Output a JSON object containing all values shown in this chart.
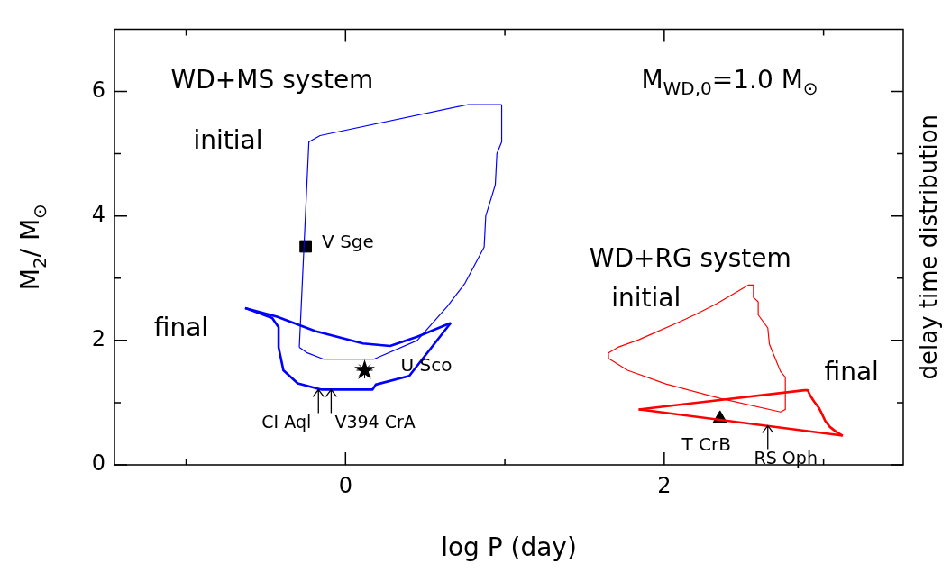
{
  "chart_data": {
    "type": "line",
    "title": "M$_{WD,0}$=1.0 M$_{⊙}$",
    "xlabel": "log P (day)",
    "ylabel": "M$_{2}$/ M$_{⊙}$",
    "xlim": [
      -1.45,
      3.5
    ],
    "xticks": [
      {
        "value": -1,
        "label": null
      },
      0,
      {
        "value": 1,
        "label": null
      },
      2,
      {
        "value": 3,
        "label": null
      }
    ],
    "ylim": [
      0,
      7
    ],
    "yticks": [
      0,
      {
        "value": 1,
        "label": null
      },
      2,
      {
        "value": 3,
        "label": null
      },
      4,
      {
        "value": 5,
        "label": null
      },
      6
    ],
    "series": [
      {
        "type": "line",
        "color": "#0000ff",
        "marker": "none",
        "x": [
          -0.29,
          -0.23,
          -0.16,
          0.77,
          0.98
        ],
        "values": [
          1.89,
          5.19,
          5.29,
          5.79,
          5.79
        ]
      },
      {
        "type": "line",
        "color": "#0000ff",
        "marker": "none",
        "x": [
          -0.29,
          -0.24,
          -0.14,
          0.18,
          0.45,
          0.64,
          0.75,
          0.87,
          0.88,
          0.94,
          0.95,
          0.98,
          0.98
        ],
        "values": [
          1.89,
          1.8,
          1.7,
          1.7,
          2.0,
          2.55,
          2.92,
          3.5,
          4.0,
          4.5,
          5.0,
          5.19,
          5.79
        ]
      },
      {
        "type": "line",
        "color": "#0000ff",
        "marker": "none",
        "x": [
          -0.63,
          -0.43,
          -0.19,
          0.11,
          0.28,
          0.45,
          0.66
        ],
        "values": [
          2.52,
          2.38,
          2.15,
          1.95,
          1.91,
          2.06,
          2.28
        ]
      },
      {
        "type": "line",
        "color": "#0000ff",
        "marker": "none",
        "x": [
          -0.63,
          -0.46,
          -0.42,
          -0.42,
          -0.39,
          -0.3,
          -0.15,
          0.17,
          0.19,
          0.4,
          0.66
        ],
        "values": [
          2.52,
          2.36,
          2.21,
          1.89,
          1.52,
          1.31,
          1.21,
          1.21,
          1.29,
          1.43,
          2.28
        ]
      },
      {
        "type": "line",
        "color": "#ff0000",
        "marker": "none",
        "x": [
          1.65,
          1.71,
          1.84,
          1.92,
          2.08,
          2.2,
          2.33,
          2.53,
          2.56,
          2.56,
          2.59,
          2.59,
          2.65,
          2.66,
          2.7,
          2.73,
          2.76,
          2.76
        ],
        "values": [
          1.8,
          1.89,
          2.01,
          2.1,
          2.28,
          2.42,
          2.59,
          2.89,
          2.89,
          2.69,
          2.62,
          2.41,
          2.2,
          1.94,
          1.69,
          1.5,
          1.41,
          0.89
        ]
      },
      {
        "type": "line",
        "color": "#ff0000",
        "marker": "none",
        "x": [
          1.65,
          1.65,
          1.77,
          2.01,
          2.35,
          2.73,
          2.76
        ],
        "values": [
          1.8,
          1.71,
          1.52,
          1.3,
          1.07,
          0.85,
          0.89
        ]
      },
      {
        "type": "line",
        "color": "#ff0000",
        "marker": "none",
        "x": [
          1.84,
          2.88,
          2.9,
          2.92,
          2.94,
          2.97,
          2.99,
          3.01,
          3.04,
          3.08,
          3.12
        ],
        "values": [
          0.89,
          1.2,
          1.2,
          1.1,
          1.02,
          0.92,
          0.82,
          0.71,
          0.61,
          0.53,
          0.47
        ]
      },
      {
        "type": "line",
        "color": "#ff0000",
        "marker": "none",
        "x": [
          1.84,
          1.88,
          3.12
        ],
        "values": [
          0.89,
          0.88,
          0.47
        ]
      },
      {
        "type": "scatter",
        "name": "V Sge",
        "color": "#000000",
        "marker": "square",
        "x": [
          -0.25
        ],
        "values": [
          3.51
        ]
      },
      {
        "type": "scatter",
        "name": "U Sco",
        "color": "#000000",
        "marker": "star",
        "x": [
          0.12
        ],
        "values": [
          1.52
        ]
      },
      {
        "type": "scatter",
        "name": "T CrB",
        "color": "#000000",
        "marker": "triangle",
        "x": [
          2.35
        ],
        "values": [
          0.74
        ]
      }
    ],
    "annotations": [
      "WD+MS system",
      "initial",
      "final",
      "WD+RG system",
      "initial",
      "final",
      "delay time distribution",
      {
        "text": "CI Aql",
        "x": -0.17,
        "y": 1.21
      },
      {
        "text": "V394 CrA",
        "x": -0.09,
        "y": 1.21
      },
      {
        "text": "RS Oph",
        "x": 2.65,
        "y": 0.63
      }
    ]
  }
}
